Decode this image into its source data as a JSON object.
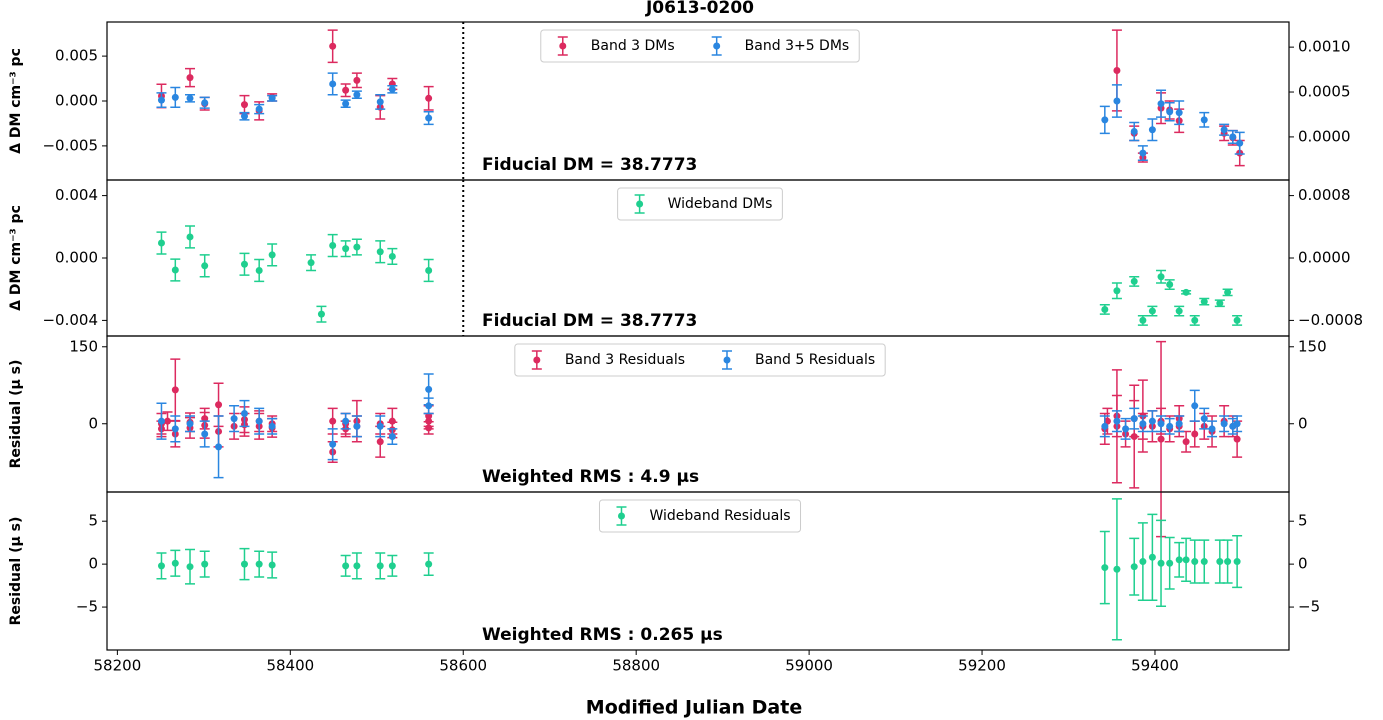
{
  "chart_data": [
    {
      "type": "scatter",
      "title": "J0613-0200",
      "ylabel": "Δ DM  cm⁻³ pc",
      "annotation": "Fiducial DM = 38.7773",
      "vline": 58600,
      "xlim": [
        58188,
        59555
      ],
      "ylim": [
        -0.0088,
        0.0088
      ],
      "y2lim": [
        -0.00048,
        0.00128
      ],
      "yticks": [
        {
          "value": -0.005,
          "label": "−0.005"
        },
        {
          "value": 0,
          "label": "0.000"
        },
        0.005
      ],
      "y2ticks": [
        {
          "value": 0,
          "label": "0.0000"
        },
        {
          "value": 0.0005,
          "label": "0.0005"
        },
        {
          "value": 0.001,
          "label": "0.0010"
        }
      ],
      "legend": "upper center",
      "series": [
        {
          "name": "Band 3 DMs",
          "color": "#dc2a5f",
          "x": [
            58251,
            58284,
            58301,
            58347,
            58364,
            58379,
            58449,
            58464,
            58477,
            58504,
            58518,
            58560,
            59356,
            59376,
            59386,
            59407,
            59417,
            59428,
            59480,
            59490,
            59498
          ],
          "values": [
            0.00056,
            0.0026,
            -0.0003,
            -0.0004,
            -0.0011,
            0.0004,
            0.0061,
            0.0012,
            0.0023,
            -0.0007,
            0.0019,
            0.0003,
            0.0034,
            -0.0036,
            -0.0063,
            -0.0008,
            -0.001,
            -0.0022,
            -0.0036,
            -0.0041,
            -0.0058
          ],
          "errors": [
            0.0013,
            0.001,
            0.0007,
            0.001,
            0.001,
            0.0004,
            0.0018,
            0.0007,
            0.0008,
            0.0013,
            0.0006,
            0.0013,
            0.0045,
            0.0008,
            0.0005,
            0.0017,
            0.001,
            0.0013,
            0.0008,
            0.0008,
            0.0014
          ]
        },
        {
          "name": "Band 3+5 DMs",
          "color": "#2a86e0",
          "x": [
            58251,
            58267,
            58284,
            58301,
            58347,
            58364,
            58379,
            58449,
            58464,
            58477,
            58504,
            58518,
            58560,
            59342,
            59356,
            59376,
            59386,
            59397,
            59407,
            59417,
            59428,
            59457,
            59480,
            59490,
            59498
          ],
          "values": [
            0.0001,
            0.0004,
            0.0003,
            -0.0002,
            -0.0017,
            -0.0009,
            0.0003,
            0.0019,
            -0.0003,
            0.0007,
            -0.0001,
            0.0013,
            -0.0019,
            -0.0021,
            0,
            -0.0034,
            -0.0058,
            -0.0032,
            -0.0003,
            -0.0012,
            -0.0013,
            -0.0021,
            -0.0032,
            -0.004,
            -0.0047
          ],
          "errors": [
            0.0008,
            0.0011,
            0.0004,
            0.0006,
            0.0004,
            0.0005,
            0.0003,
            0.0012,
            0.0004,
            0.0004,
            0.0008,
            0.0004,
            0.0007,
            0.0015,
            0.0018,
            0.001,
            0.0008,
            0.0012,
            0.0015,
            0.001,
            0.0013,
            0.0008,
            0.0006,
            0.0007,
            0.0012
          ]
        }
      ]
    },
    {
      "type": "scatter",
      "ylabel": "Δ DM  cm⁻³ pc",
      "annotation": "Fiducial DM = 38.7773",
      "vline": 58600,
      "xlim": [
        58188,
        59555
      ],
      "ylim": [
        -0.005,
        0.005
      ],
      "y2lim": [
        -0.001,
        0.001
      ],
      "yticks": [
        {
          "value": -0.004,
          "label": "−0.004"
        },
        {
          "value": 0,
          "label": "0.000"
        },
        0.004
      ],
      "y2ticks": [
        {
          "value": -0.0008,
          "label": "−0.0008"
        },
        {
          "value": 0,
          "label": "0.0000"
        },
        0.0008
      ],
      "legend": "upper center",
      "series": [
        {
          "name": "Wideband DMs",
          "color": "#1fcf8f",
          "x": [
            58251,
            58267,
            58284,
            58301,
            58347,
            58364,
            58379,
            58424,
            58436,
            58449,
            58464,
            58477,
            58504,
            58518,
            58560,
            59342,
            59356,
            59376,
            59386,
            59397,
            59407,
            59417,
            59428,
            59436,
            59446,
            59457,
            59475,
            59484,
            59495
          ],
          "values": [
            0.00096,
            -0.00077,
            0.00135,
            -0.0005,
            -0.0004,
            -0.0008,
            0.0002,
            -0.0003,
            -0.0036,
            0.0008,
            0.0006,
            0.0007,
            0.0004,
            0.0001,
            -0.0008,
            -0.0033,
            -0.0021,
            -0.0015,
            -0.004,
            -0.0034,
            -0.0012,
            -0.0017,
            -0.0034,
            -0.0022,
            -0.004,
            -0.0028,
            -0.0029,
            -0.0022,
            -0.004
          ],
          "errors": [
            0.0007,
            0.0007,
            0.0007,
            0.0007,
            0.0007,
            0.0007,
            0.0007,
            0.0005,
            0.0005,
            0.0007,
            0.0005,
            0.0005,
            0.0007,
            0.0005,
            0.0007,
            0.0003,
            0.0005,
            0.0003,
            0.0003,
            0.0003,
            0.0004,
            0.0003,
            0.0003,
            0.0001,
            0.0003,
            0.0002,
            0.0002,
            0.0002,
            0.0003
          ]
        }
      ]
    },
    {
      "type": "scatter",
      "ylabel": "Residual (μ s)",
      "annotation": "Weighted RMS : 4.9 μs",
      "xlim": [
        58188,
        59555
      ],
      "ylim": [
        -133,
        171
      ],
      "y2lim": [
        -133,
        171
      ],
      "yticks": [
        0,
        150
      ],
      "y2ticks": [
        0,
        150
      ],
      "legend": "upper center",
      "series": [
        {
          "name": "Band 3 Residuals",
          "color": "#dc2a5f",
          "x": [
            58251,
            58251,
            58258,
            58267,
            58267,
            58284,
            58284,
            58301,
            58301,
            58317,
            58317,
            58335,
            58347,
            58347,
            58364,
            58364,
            58379,
            58379,
            58449,
            58449,
            58464,
            58464,
            58477,
            58477,
            58504,
            58504,
            58518,
            58518,
            58560,
            58560,
            58560,
            59342,
            59345,
            59356,
            59356,
            59366,
            59376,
            59376,
            59386,
            59386,
            59397,
            59407,
            59407,
            59417,
            59428,
            59428,
            59436,
            59446,
            59457,
            59466,
            59480,
            59490,
            59495
          ],
          "values": [
            0,
            -10,
            5,
            66,
            -20,
            3,
            -8,
            -3,
            10,
            37,
            -15,
            -5,
            -2,
            8,
            -5,
            5,
            0,
            -8,
            -55,
            5,
            0,
            -10,
            5,
            -5,
            -35,
            0,
            5,
            -12,
            5,
            -8,
            15,
            -10,
            5,
            -5,
            15,
            -20,
            -25,
            10,
            15,
            -5,
            -5,
            -30,
            5,
            -10,
            10,
            -5,
            -35,
            -20,
            -5,
            -15,
            5,
            -5,
            -30
          ],
          "errors": [
            20,
            15,
            18,
            60,
            25,
            18,
            20,
            25,
            20,
            42,
            30,
            25,
            22,
            25,
            25,
            20,
            15,
            18,
            20,
            25,
            20,
            15,
            40,
            20,
            30,
            20,
            25,
            15,
            15,
            12,
            20,
            30,
            25,
            110,
            40,
            25,
            100,
            35,
            70,
            25,
            30,
            190,
            25,
            25,
            25,
            20,
            20,
            25,
            25,
            30,
            30,
            20,
            35
          ]
        },
        {
          "name": "Band 5 Residuals",
          "color": "#2a86e0",
          "x": [
            58251,
            58267,
            58284,
            58301,
            58317,
            58335,
            58347,
            58364,
            58379,
            58449,
            58464,
            58477,
            58504,
            58518,
            58560,
            58560,
            59342,
            59356,
            59366,
            59376,
            59386,
            59397,
            59407,
            59417,
            59428,
            59446,
            59457,
            59466,
            59480,
            59490,
            59495
          ],
          "values": [
            5,
            -10,
            0,
            -20,
            -45,
            10,
            20,
            5,
            -5,
            -40,
            5,
            -5,
            -5,
            -25,
            67,
            35,
            -5,
            5,
            -10,
            10,
            0,
            5,
            0,
            -5,
            0,
            35,
            10,
            -10,
            0,
            -5,
            0
          ],
          "errors": [
            35,
            25,
            15,
            25,
            60,
            25,
            25,
            25,
            15,
            30,
            15,
            20,
            20,
            15,
            30,
            15,
            20,
            20,
            20,
            20,
            15,
            20,
            15,
            15,
            15,
            30,
            20,
            15,
            15,
            15,
            15
          ]
        }
      ]
    },
    {
      "type": "scatter",
      "ylabel": "Residual (μ s)",
      "annotation": "Weighted RMS : 0.265 μs",
      "xlabel": "Modified Julian Date",
      "xlim": [
        58188,
        59555
      ],
      "ylim": [
        -10,
        8.4
      ],
      "y2lim": [
        -10,
        8.4
      ],
      "xticks": [
        58200,
        58400,
        58600,
        58800,
        59000,
        59200,
        59400
      ],
      "yticks": [
        {
          "value": -5,
          "label": "−5"
        },
        0,
        5
      ],
      "y2ticks": [
        {
          "value": -5,
          "label": "−5"
        },
        0,
        5
      ],
      "legend": "upper center",
      "series": [
        {
          "name": "Wideband Residuals",
          "color": "#1fcf8f",
          "x": [
            58251,
            58267,
            58284,
            58301,
            58347,
            58364,
            58379,
            58464,
            58477,
            58504,
            58518,
            58560,
            59342,
            59356,
            59376,
            59386,
            59397,
            59407,
            59417,
            59428,
            59436,
            59446,
            59457,
            59475,
            59484,
            59495
          ],
          "values": [
            -0.2,
            0.1,
            -0.3,
            0,
            0,
            0,
            -0.1,
            -0.2,
            -0.2,
            -0.2,
            -0.2,
            0,
            -0.4,
            -0.6,
            -0.3,
            0.3,
            0.8,
            0.1,
            0.1,
            0.5,
            0.5,
            0.3,
            0.3,
            0.3,
            0.3,
            0.3
          ],
          "errors": [
            1.5,
            1.5,
            2,
            1.5,
            1.8,
            1.5,
            1.5,
            1.2,
            1.5,
            1.5,
            1.2,
            1.3,
            4.2,
            8.2,
            3.3,
            4.5,
            5,
            5,
            3,
            2,
            2.5,
            2.5,
            2.5,
            2.5,
            2.5,
            3
          ]
        }
      ]
    }
  ]
}
